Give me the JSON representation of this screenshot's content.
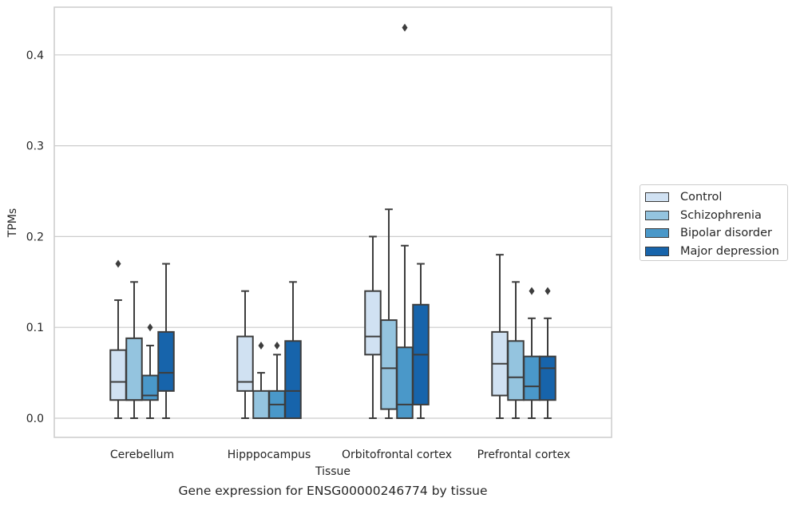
{
  "chart_data": {
    "type": "boxplot",
    "title": "",
    "caption": "Gene expression for ENSG00000246774 by tissue",
    "xlabel": "Tissue",
    "ylabel": "TPMs",
    "ylim": [
      -0.021,
      0.454
    ],
    "yticks": [
      "0.0",
      "0.1",
      "0.2",
      "0.3",
      "0.4"
    ],
    "ytick_values": [
      0,
      0.1,
      0.2,
      0.3,
      0.4
    ],
    "grid": "horizontal",
    "legend_position": "outside right",
    "categories": [
      "Cerebellum",
      "Hipppocampus",
      "Orbitofrontal cortex",
      "Prefrontal cortex"
    ],
    "series": [
      {
        "name": "Control",
        "color": "#d0e1f2",
        "boxes": [
          {
            "whislo": 0,
            "q1": 0.02,
            "med": 0.04,
            "q3": 0.075,
            "whishi": 0.13,
            "fliers": [
              0.17
            ]
          },
          {
            "whislo": 0,
            "q1": 0.03,
            "med": 0.04,
            "q3": 0.09,
            "whishi": 0.14,
            "fliers": []
          },
          {
            "whislo": 0,
            "q1": 0.07,
            "med": 0.09,
            "q3": 0.14,
            "whishi": 0.2,
            "fliers": []
          },
          {
            "whislo": 0,
            "q1": 0.025,
            "med": 0.06,
            "q3": 0.095,
            "whishi": 0.18,
            "fliers": []
          }
        ]
      },
      {
        "name": "Schizophrenia",
        "color": "#94c4df",
        "boxes": [
          {
            "whislo": 0,
            "q1": 0.02,
            "med": 0.02,
            "q3": 0.088,
            "whishi": 0.15,
            "fliers": []
          },
          {
            "whislo": 0,
            "q1": 0,
            "med": 0,
            "q3": 0.03,
            "whishi": 0.05,
            "fliers": [
              0.08
            ]
          },
          {
            "whislo": 0,
            "q1": 0.01,
            "med": 0.055,
            "q3": 0.108,
            "whishi": 0.23,
            "fliers": []
          },
          {
            "whislo": 0,
            "q1": 0.02,
            "med": 0.045,
            "q3": 0.085,
            "whishi": 0.15,
            "fliers": []
          }
        ]
      },
      {
        "name": "Bipolar disorder",
        "color": "#4a98c9",
        "boxes": [
          {
            "whislo": 0,
            "q1": 0.02,
            "med": 0.025,
            "q3": 0.047,
            "whishi": 0.08,
            "fliers": [
              0.1
            ]
          },
          {
            "whislo": 0,
            "q1": 0,
            "med": 0.015,
            "q3": 0.03,
            "whishi": 0.07,
            "fliers": [
              0.08
            ]
          },
          {
            "whislo": 0,
            "q1": 0,
            "med": 0.015,
            "q3": 0.078,
            "whishi": 0.19,
            "fliers": [
              0.43
            ]
          },
          {
            "whislo": 0,
            "q1": 0.02,
            "med": 0.035,
            "q3": 0.068,
            "whishi": 0.11,
            "fliers": [
              0.14
            ]
          }
        ]
      },
      {
        "name": "Major depression",
        "color": "#1764ab",
        "boxes": [
          {
            "whislo": 0,
            "q1": 0.03,
            "med": 0.05,
            "q3": 0.095,
            "whishi": 0.17,
            "fliers": []
          },
          {
            "whislo": 0,
            "q1": 0,
            "med": 0.03,
            "q3": 0.085,
            "whishi": 0.15,
            "fliers": []
          },
          {
            "whislo": 0,
            "q1": 0.015,
            "med": 0.07,
            "q3": 0.125,
            "whishi": 0.17,
            "fliers": []
          },
          {
            "whislo": 0,
            "q1": 0.02,
            "med": 0.055,
            "q3": 0.068,
            "whishi": 0.11,
            "fliers": [
              0.14
            ]
          }
        ]
      }
    ]
  }
}
